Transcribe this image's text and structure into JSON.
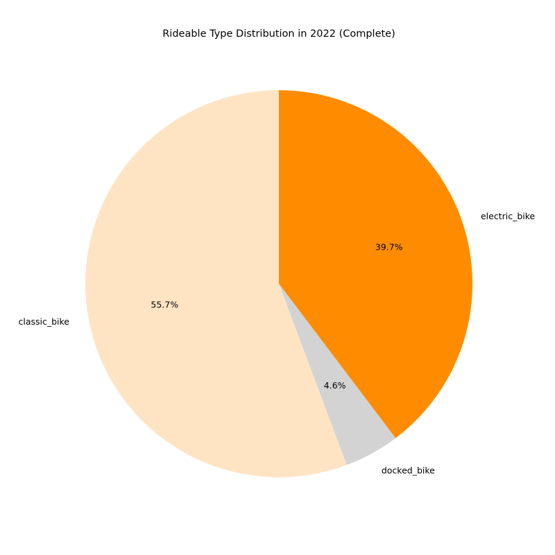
{
  "chart_data": {
    "type": "pie",
    "title": "Rideable Type Distribution in 2022 (Complete)",
    "start_angle_deg": 90,
    "direction": "clockwise",
    "slices": [
      {
        "label": "electric_bike",
        "value": 39.7,
        "pct_label": "39.7%",
        "color": "#ff8c00"
      },
      {
        "label": "docked_bike",
        "value": 4.6,
        "pct_label": "4.6%",
        "color": "#d3d3d3"
      },
      {
        "label": "classic_bike",
        "value": 55.7,
        "pct_label": "55.7%",
        "color": "#ffe4c4"
      }
    ]
  }
}
